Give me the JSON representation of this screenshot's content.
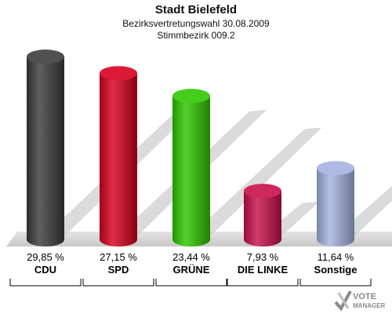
{
  "header": {
    "title": "Stadt Bielefeld",
    "subtitle1": "Bezirksvertretungswahl 30.08.2009",
    "subtitle2": "Stimmbezirk 009.2"
  },
  "chart_data": {
    "type": "bar",
    "categories": [
      "CDU",
      "SPD",
      "GRÜNE",
      "DIE LINKE",
      "Sonstige"
    ],
    "values": [
      29.85,
      27.15,
      23.44,
      7.93,
      11.64
    ],
    "value_labels": [
      "29,85 %",
      "27,15 %",
      "23,44 %",
      "7,93 %",
      "11,64 %"
    ],
    "colors": [
      "#3c3c3c",
      "#d8001e",
      "#2fc700",
      "#c8104a",
      "#a4b2e0"
    ],
    "ylim": [
      0,
      30
    ],
    "grid": false,
    "legend": "none"
  },
  "logo": {
    "line1": "VOTE",
    "line2": "MANAGER"
  }
}
